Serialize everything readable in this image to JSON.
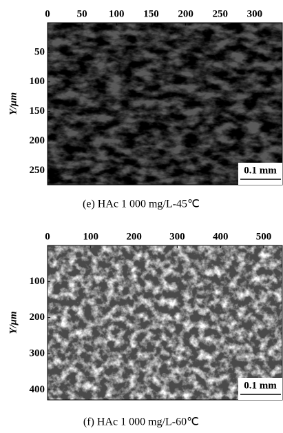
{
  "panels": [
    {
      "xlim": [
        0,
        340
      ],
      "xticks": [
        0,
        50,
        100,
        150,
        200,
        250,
        300
      ],
      "ylim": [
        0,
        274
      ],
      "yticks": [
        50,
        100,
        150,
        200,
        250
      ],
      "ylabel": "Y/μm",
      "scale_bar": "0.1 mm",
      "caption": "(e) HAc 1 000 mg/L-45℃"
    },
    {
      "xlim": [
        0,
        543
      ],
      "xticks": [
        0,
        100,
        200,
        300,
        400,
        500
      ],
      "ylim": [
        0,
        428
      ],
      "yticks": [
        100,
        200,
        300,
        400
      ],
      "ylabel": "Y/μm",
      "scale_bar": "0.1 mm",
      "caption": "(f) HAc 1 000 mg/L-60℃"
    }
  ]
}
